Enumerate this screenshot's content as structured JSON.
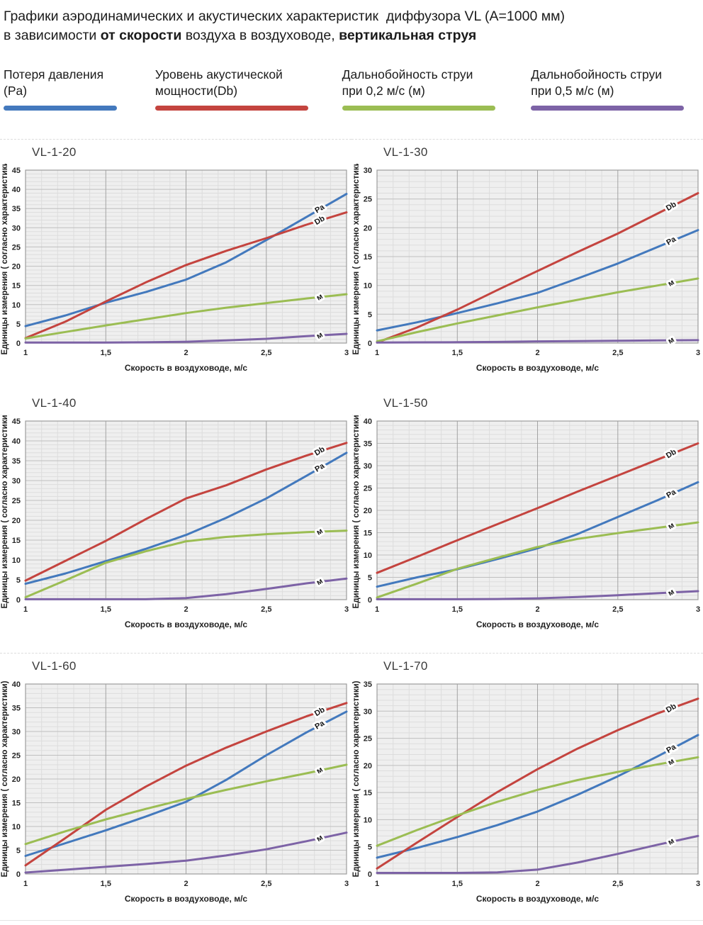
{
  "header": {
    "line1": "Графики аэродинамических и акустических характеристик  диффузора VL (A=1000 мм)",
    "line2_pre": "в зависимости ",
    "line2_bold1": "от скорости",
    "line2_mid": " воздуха в воздуховоде, ",
    "line2_bold2": "вертикальная струя"
  },
  "colors": {
    "pressure_blue": "#4379BD",
    "acoustic_red": "#C4443F",
    "jet02_green": "#9BBD53",
    "jet05_purple": "#7D63A6"
  },
  "legend": {
    "items": [
      {
        "label_line1": "Потеря давления",
        "label_line2": "(Pa)",
        "color": "#4379BD"
      },
      {
        "label_line1": "Уровень акустической",
        "label_line2": "мощности(Db)",
        "color": "#C4443F"
      },
      {
        "label_line1": "Дальнобойность струи",
        "label_line2": "при 0,2 м/с (м)",
        "color": "#9BBD53"
      },
      {
        "label_line1": "Дальнобойность струи",
        "label_line2": "при 0,5 м/с (м)",
        "color": "#7D63A6"
      }
    ]
  },
  "chart_data": [
    {
      "type": "line",
      "title": "VL-1-20",
      "xlabel": "Скорость в воздуховоде, м/с",
      "ylabel": "Единицы измерения ( согласно характеристики)",
      "xlim": [
        1,
        3
      ],
      "ylim": [
        0,
        45
      ],
      "ytick": 5,
      "minor_y": 1,
      "xticks": [
        1,
        1.5,
        2,
        2.5,
        3
      ],
      "xticklabels": [
        "1",
        "1,5",
        "2",
        "2,5",
        "3"
      ],
      "x": [
        1,
        1.25,
        1.5,
        1.75,
        2,
        2.25,
        2.5,
        2.75,
        3
      ],
      "series": [
        {
          "name": "Потеря давления (Pa)",
          "label": "Pa",
          "color": "#4379BD",
          "values": [
            4.4,
            7.2,
            10.5,
            13.3,
            16.5,
            21.0,
            26.8,
            32.8,
            38.8
          ]
        },
        {
          "name": "Уровень акустической мощности (Db)",
          "label": "Db",
          "color": "#C4443F",
          "values": [
            1.3,
            5.6,
            10.8,
            15.8,
            20.3,
            24.0,
            27.3,
            30.8,
            34.0
          ]
        },
        {
          "name": "Дальнобойность струи при 0,2 м/с (м)",
          "label": "м",
          "color": "#9BBD53",
          "values": [
            1.2,
            2.9,
            4.6,
            6.2,
            7.8,
            9.2,
            10.4,
            11.6,
            12.7
          ]
        },
        {
          "name": "Дальнобойность струи при 0,5 м/с (м)",
          "label": "м",
          "color": "#7D63A6",
          "values": [
            0.15,
            0.15,
            0.15,
            0.2,
            0.35,
            0.7,
            1.1,
            1.8,
            2.4
          ]
        }
      ]
    },
    {
      "type": "line",
      "title": "VL-1-30",
      "xlabel": "Скорость в воздуховоде, м/с",
      "ylabel": "Единицы измерения ( согласно характеристики)",
      "xlim": [
        1,
        3
      ],
      "ylim": [
        0,
        30
      ],
      "ytick": 5,
      "minor_y": 1,
      "xticks": [
        1,
        1.5,
        2,
        2.5,
        3
      ],
      "xticklabels": [
        "1",
        "1,5",
        "2",
        "2,5",
        "3"
      ],
      "x": [
        1,
        1.25,
        1.5,
        1.75,
        2,
        2.25,
        2.5,
        2.75,
        3
      ],
      "series": [
        {
          "name": "Потеря давления (Pa)",
          "label": "Pa",
          "color": "#4379BD",
          "values": [
            2.2,
            3.6,
            5.2,
            6.9,
            8.7,
            11.2,
            13.8,
            16.7,
            19.6
          ]
        },
        {
          "name": "Уровень акустической мощности (Db)",
          "label": "Db",
          "color": "#C4443F",
          "values": [
            0.1,
            2.7,
            5.8,
            9.2,
            12.5,
            15.8,
            19.0,
            22.5,
            26.0
          ]
        },
        {
          "name": "Дальнобойность струи при 0,2 м/с (м)",
          "label": "м",
          "color": "#9BBD53",
          "values": [
            0.3,
            1.9,
            3.4,
            4.8,
            6.2,
            7.5,
            8.8,
            10.0,
            11.2
          ]
        },
        {
          "name": "Дальнобойность струи при 0,5 м/с (м)",
          "label": "м",
          "color": "#7D63A6",
          "values": [
            0.1,
            0.12,
            0.15,
            0.2,
            0.3,
            0.35,
            0.4,
            0.45,
            0.5
          ]
        }
      ]
    },
    {
      "type": "line",
      "title": "VL-1-40",
      "xlabel": "Скорость в воздуховоде, м/с",
      "ylabel": "Единицы измерения ( согласно характеристики)",
      "xlim": [
        1,
        3
      ],
      "ylim": [
        0,
        45
      ],
      "ytick": 5,
      "minor_y": 1,
      "xticks": [
        1,
        1.5,
        2,
        2.5,
        3
      ],
      "xticklabels": [
        "1",
        "1,5",
        "2",
        "2,5",
        "3"
      ],
      "x": [
        1,
        1.25,
        1.5,
        1.75,
        2,
        2.25,
        2.5,
        2.75,
        3
      ],
      "series": [
        {
          "name": "Потеря давления (Pa)",
          "label": "Pa",
          "color": "#4379BD",
          "values": [
            4.0,
            6.6,
            9.7,
            12.8,
            16.3,
            20.6,
            25.5,
            31.2,
            37.0
          ]
        },
        {
          "name": "Уровень акустической мощности (Db)",
          "label": "Db",
          "color": "#C4443F",
          "values": [
            4.8,
            9.8,
            14.8,
            20.3,
            25.5,
            28.8,
            32.8,
            36.3,
            39.5
          ]
        },
        {
          "name": "Дальнобойность струи при 0,2 м/с (м)",
          "label": "м",
          "color": "#9BBD53",
          "values": [
            0.6,
            4.9,
            9.3,
            12.2,
            14.7,
            15.8,
            16.5,
            17.0,
            17.4
          ]
        },
        {
          "name": "Дальнобойность струи при 0,5 м/с (м)",
          "label": "м",
          "color": "#7D63A6",
          "values": [
            0.1,
            0.1,
            0.1,
            0.1,
            0.4,
            1.4,
            2.7,
            4.1,
            5.3
          ]
        }
      ]
    },
    {
      "type": "line",
      "title": "VL-1-50",
      "xlabel": "Скорость в воздуховоде, м/с",
      "ylabel": "Единицы измерения ( согласно характеристики)",
      "xlim": [
        1,
        3
      ],
      "ylim": [
        0,
        40
      ],
      "ytick": 5,
      "minor_y": 1,
      "xticks": [
        1,
        1.5,
        2,
        2.5,
        3
      ],
      "xticklabels": [
        "1",
        "1,5",
        "2",
        "2,5",
        "3"
      ],
      "x": [
        1,
        1.25,
        1.5,
        1.75,
        2,
        2.25,
        2.5,
        2.75,
        3
      ],
      "series": [
        {
          "name": "Потеря давления (Pa)",
          "label": "Pa",
          "color": "#4379BD",
          "values": [
            2.9,
            5.0,
            6.8,
            9.1,
            11.5,
            14.7,
            18.5,
            22.3,
            26.3
          ]
        },
        {
          "name": "Уровень акустической мощности (Db)",
          "label": "Db",
          "color": "#C4443F",
          "values": [
            6.0,
            9.6,
            13.3,
            16.9,
            20.5,
            24.2,
            27.8,
            31.4,
            35.0
          ]
        },
        {
          "name": "Дальнобойность струи при 0,2 м/с (м)",
          "label": "м",
          "color": "#9BBD53",
          "values": [
            0.5,
            3.6,
            6.9,
            9.4,
            11.8,
            13.6,
            14.9,
            16.1,
            17.3
          ]
        },
        {
          "name": "Дальнобойность струи при 0,5 м/с (м)",
          "label": "м",
          "color": "#7D63A6",
          "values": [
            0.1,
            0.1,
            0.1,
            0.15,
            0.3,
            0.6,
            1.0,
            1.45,
            1.9
          ]
        }
      ]
    },
    {
      "type": "line",
      "title": "VL-1-60",
      "xlabel": "Скорость в воздуховоде, м/с",
      "ylabel": "Единицы измерения ( согласно характеристики)",
      "xlim": [
        1,
        3
      ],
      "ylim": [
        0,
        40
      ],
      "ytick": 5,
      "minor_y": 1,
      "xticks": [
        1,
        1.5,
        2,
        2.5,
        3
      ],
      "xticklabels": [
        "1",
        "1,5",
        "2",
        "2,5",
        "3"
      ],
      "x": [
        1,
        1.25,
        1.5,
        1.75,
        2,
        2.25,
        2.5,
        2.75,
        3
      ],
      "series": [
        {
          "name": "Потеря давления (Pa)",
          "label": "Pa",
          "color": "#4379BD",
          "values": [
            3.8,
            6.5,
            9.2,
            12.1,
            15.2,
            19.8,
            25.0,
            29.8,
            34.2
          ]
        },
        {
          "name": "Уровень акустической мощности (Db)",
          "label": "Db",
          "color": "#C4443F",
          "values": [
            1.8,
            7.6,
            13.5,
            18.4,
            22.8,
            26.6,
            30.0,
            33.2,
            36.0
          ]
        },
        {
          "name": "Дальнобойность струи при 0,2 м/с (м)",
          "label": "м",
          "color": "#9BBD53",
          "values": [
            6.3,
            9.0,
            11.5,
            13.7,
            15.8,
            17.7,
            19.5,
            21.2,
            23.0
          ]
        },
        {
          "name": "Дальнобойность струи при 0,5 м/с (м)",
          "label": "м",
          "color": "#7D63A6",
          "values": [
            0.3,
            0.9,
            1.5,
            2.1,
            2.8,
            3.9,
            5.2,
            6.9,
            8.7
          ]
        }
      ]
    },
    {
      "type": "line",
      "title": "VL-1-70",
      "xlabel": "Скорость в воздуховоде, м/с",
      "ylabel": "Единицы измерения ( согласно характеристики)",
      "xlim": [
        1,
        3
      ],
      "ylim": [
        0,
        35
      ],
      "ytick": 5,
      "minor_y": 1,
      "xticks": [
        1,
        1.5,
        2,
        2.5,
        3
      ],
      "xticklabels": [
        "1",
        "1,5",
        "2",
        "2,5",
        "3"
      ],
      "x": [
        1,
        1.25,
        1.5,
        1.75,
        2,
        2.25,
        2.5,
        2.75,
        3
      ],
      "series": [
        {
          "name": "Потеря давления (Pa)",
          "label": "Pa",
          "color": "#4379BD",
          "values": [
            3.0,
            4.8,
            6.8,
            9.0,
            11.5,
            14.6,
            18.0,
            21.7,
            25.6
          ]
        },
        {
          "name": "Уровень акустической мощности (Db)",
          "label": "Db",
          "color": "#C4443F",
          "values": [
            1.0,
            5.8,
            10.5,
            15.1,
            19.3,
            23.1,
            26.5,
            29.6,
            32.3
          ]
        },
        {
          "name": "Дальнобойность струи при 0,2 м/с (м)",
          "label": "м",
          "color": "#9BBD53",
          "values": [
            5.2,
            8.1,
            10.8,
            13.3,
            15.5,
            17.3,
            18.8,
            20.2,
            21.5
          ]
        },
        {
          "name": "Дальнобойность струи при 0,5 м/с (м)",
          "label": "м",
          "color": "#7D63A6",
          "values": [
            0.2,
            0.2,
            0.2,
            0.3,
            0.8,
            2.1,
            3.7,
            5.4,
            7.0
          ]
        }
      ]
    }
  ],
  "style": {
    "plot_bg": "#efefef",
    "grid_minor": "#dddddd",
    "grid_major_h": "#bfbfbf",
    "grid_major_v": "#a3a3a3",
    "plot_border": "#9c9c9c"
  }
}
